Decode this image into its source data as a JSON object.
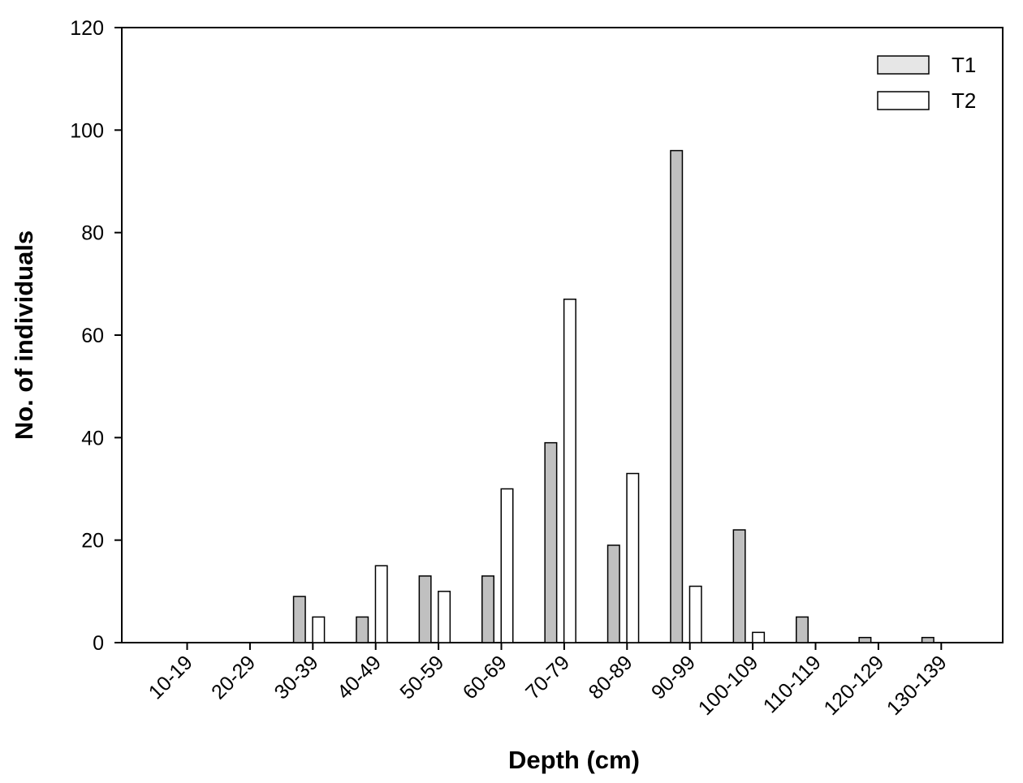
{
  "chart_data": {
    "type": "bar",
    "title": "",
    "xlabel": "Depth (cm)",
    "ylabel": "No. of individuals",
    "ylim": [
      0,
      120
    ],
    "yticks": [
      "0",
      "20",
      "40",
      "60",
      "80",
      "100",
      "120"
    ],
    "categories": [
      "10-19",
      "20-29",
      "30-39",
      "40-49",
      "50-59",
      "60-69",
      "70-79",
      "80-89",
      "90-99",
      "100-109",
      "110-119",
      "120-129",
      "130-139"
    ],
    "series": [
      {
        "name": "T1",
        "color": "#c0c0c0",
        "values": [
          0,
          0,
          9,
          5,
          13,
          13,
          39,
          19,
          96,
          22,
          5,
          1,
          1
        ]
      },
      {
        "name": "T2",
        "color": "#ffffff",
        "values": [
          0,
          0,
          5,
          15,
          10,
          30,
          67,
          33,
          11,
          2,
          0,
          0,
          0
        ]
      }
    ],
    "legend_position": "top-right",
    "grid": false
  }
}
